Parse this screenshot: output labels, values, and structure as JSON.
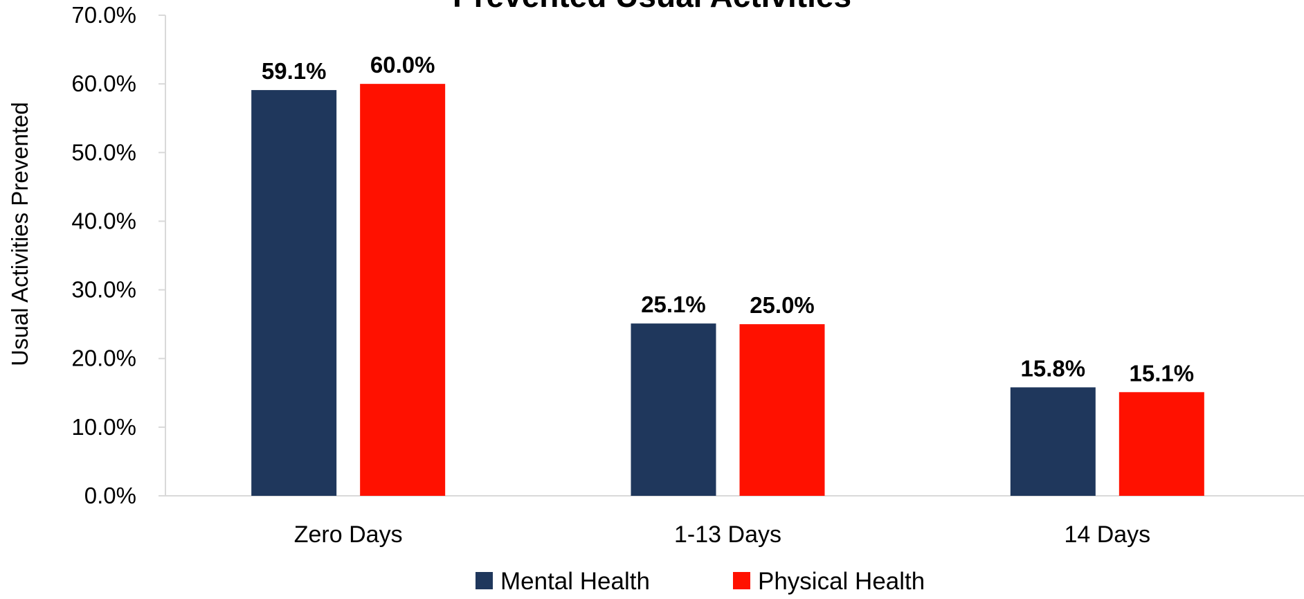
{
  "chart_data": {
    "type": "bar",
    "title": "Prevented Usual Activities",
    "xlabel": "",
    "ylabel": "Usual Activities Prevented",
    "categories": [
      "Zero Days",
      "1-13 Days",
      "14 Days"
    ],
    "series": [
      {
        "name": "Mental Health",
        "color": "#1f375c",
        "values": [
          59.1,
          25.1,
          15.8
        ],
        "labels": [
          "59.1%",
          "25.1%",
          "15.8%"
        ]
      },
      {
        "name": "Physical Health",
        "color": "#ff1100",
        "values": [
          60.0,
          25.0,
          15.1
        ],
        "labels": [
          "60.0%",
          "25.0%",
          "15.1%"
        ]
      }
    ],
    "ylim": [
      0,
      70
    ],
    "yticks": [
      0,
      10,
      20,
      30,
      40,
      50,
      60,
      70
    ],
    "ytick_labels": [
      "0.0%",
      "10.0%",
      "20.0%",
      "30.0%",
      "40.0%",
      "50.0%",
      "60.0%",
      "70.0%"
    ],
    "grid": false,
    "legend_position": "bottom-center"
  }
}
